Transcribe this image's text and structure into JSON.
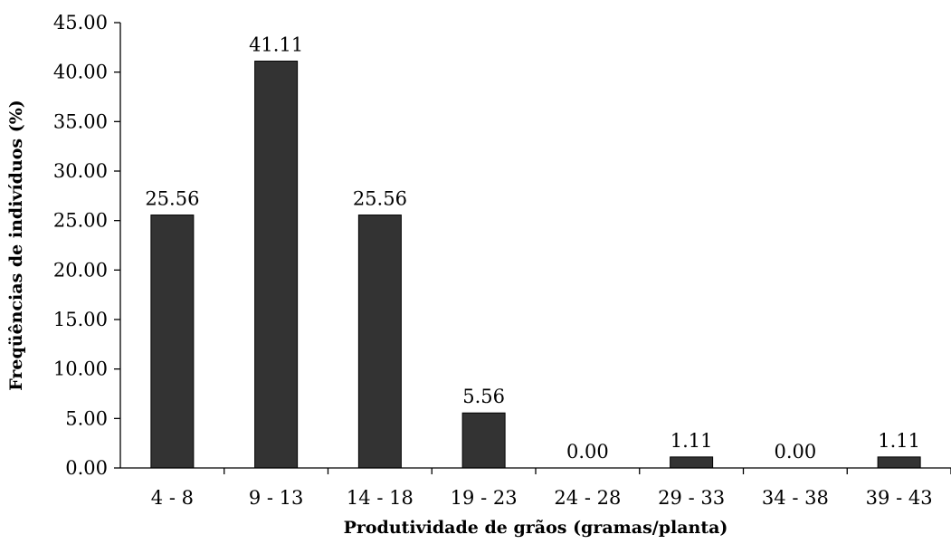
{
  "chart_data": {
    "type": "bar",
    "categories": [
      "4 - 8",
      "9 - 13",
      "14 - 18",
      "19 - 23",
      "24 - 28",
      "29 - 33",
      "34 - 38",
      "39 - 43"
    ],
    "values": [
      25.56,
      41.11,
      25.56,
      5.56,
      0.0,
      1.11,
      0.0,
      1.11
    ],
    "data_labels": [
      "25.56",
      "41.11",
      "25.56",
      "5.56",
      "0.00",
      "1.11",
      "0.00",
      "1.11"
    ],
    "xlabel": "Produtividade de grãos (gramas/planta)",
    "ylabel": "Freqüências de indivíduos (%)",
    "ylim": [
      0,
      45
    ],
    "yticks": [
      "0.00",
      "5.00",
      "10.00",
      "15.00",
      "20.00",
      "25.00",
      "30.00",
      "35.00",
      "40.00",
      "45.00"
    ],
    "ytick_values": [
      0,
      5,
      10,
      15,
      20,
      25,
      30,
      35,
      40,
      45
    ],
    "grid": false,
    "legend": "none",
    "bar_color": "#333333"
  }
}
